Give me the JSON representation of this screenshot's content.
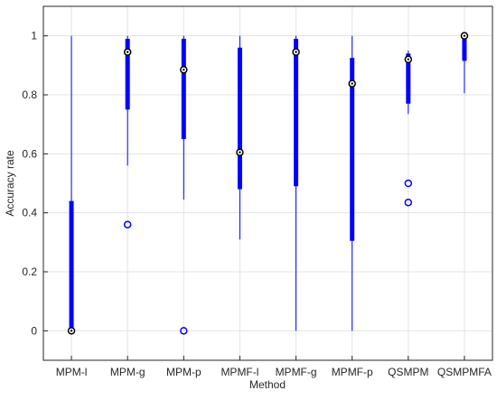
{
  "chart_data": {
    "type": "box",
    "x_label": "Method",
    "y_label": "Accuracy rate",
    "color": "#0000ff",
    "categories": [
      "MPM-l",
      "MPM-g",
      "MPM-p",
      "MPMF-l",
      "MPMF-g",
      "MPMF-p",
      "QSMPM",
      "QSMPMFA"
    ],
    "boxes": [
      {
        "whisker_low": 0,
        "q1": 0,
        "median": 0,
        "q3": 0.44,
        "whisker_high": 1,
        "outliers": []
      },
      {
        "whisker_low": 0.56,
        "q1": 0.75,
        "median": 0.945,
        "q3": 0.99,
        "whisker_high": 1,
        "outliers": [
          0.36
        ]
      },
      {
        "whisker_low": 0.445,
        "q1": 0.65,
        "median": 0.885,
        "q3": 0.99,
        "whisker_high": 1,
        "outliers": [
          0
        ]
      },
      {
        "whisker_low": 0.31,
        "q1": 0.48,
        "median": 0.605,
        "q3": 0.96,
        "whisker_high": 1,
        "outliers": []
      },
      {
        "whisker_low": 0,
        "q1": 0.49,
        "median": 0.945,
        "q3": 0.99,
        "whisker_high": 1,
        "outliers": []
      },
      {
        "whisker_low": 0,
        "q1": 0.305,
        "median": 0.838,
        "q3": 0.925,
        "whisker_high": 1,
        "outliers": []
      },
      {
        "whisker_low": 0.735,
        "q1": 0.77,
        "median": 0.92,
        "q3": 0.94,
        "whisker_high": 0.95,
        "outliers": [
          0.5,
          0.435
        ]
      },
      {
        "whisker_low": 0.805,
        "q1": 0.915,
        "median": 1,
        "q3": 1,
        "whisker_high": 1,
        "outliers": []
      }
    ],
    "ylim": [
      -0.1,
      1.1
    ],
    "yticks": [
      0,
      0.2,
      0.4,
      0.6,
      0.8,
      1
    ],
    "grid": true
  }
}
